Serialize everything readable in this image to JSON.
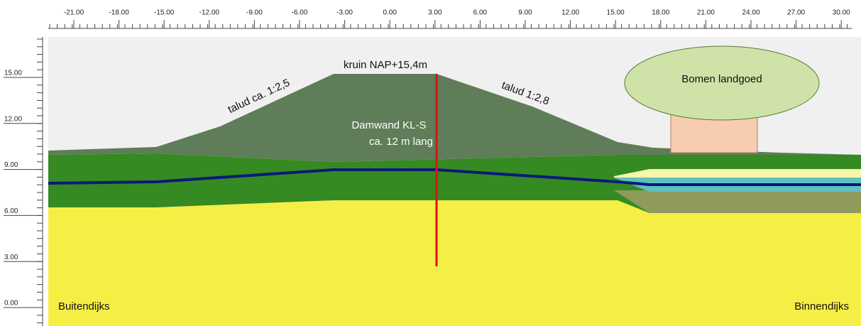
{
  "x_axis": {
    "ticks": [
      "-21.00",
      "-18.00",
      "-15.00",
      "-12.00",
      "-9.00",
      "-6.00",
      "-3.00",
      "0.00",
      "3.00",
      "6.00",
      "9.00",
      "12.00",
      "15.00",
      "18.00",
      "21.00",
      "24.00",
      "27.00",
      "30.00"
    ]
  },
  "y_axis": {
    "ticks": [
      "15.00",
      "12.00",
      "9.00",
      "6.00",
      "3.00",
      "0.00"
    ]
  },
  "labels": {
    "crest": "kruin NAP+15,4m",
    "slope_outer": "talud ca. 1:2,5",
    "slope_inner": "talud 1:2,8",
    "sheet_pile_1": "Damwand KL-S",
    "sheet_pile_2": "ca. 12 m lang",
    "trees": "Bomen landgoed",
    "outside": "Buitendijks",
    "inside": "Binnendijks"
  }
}
